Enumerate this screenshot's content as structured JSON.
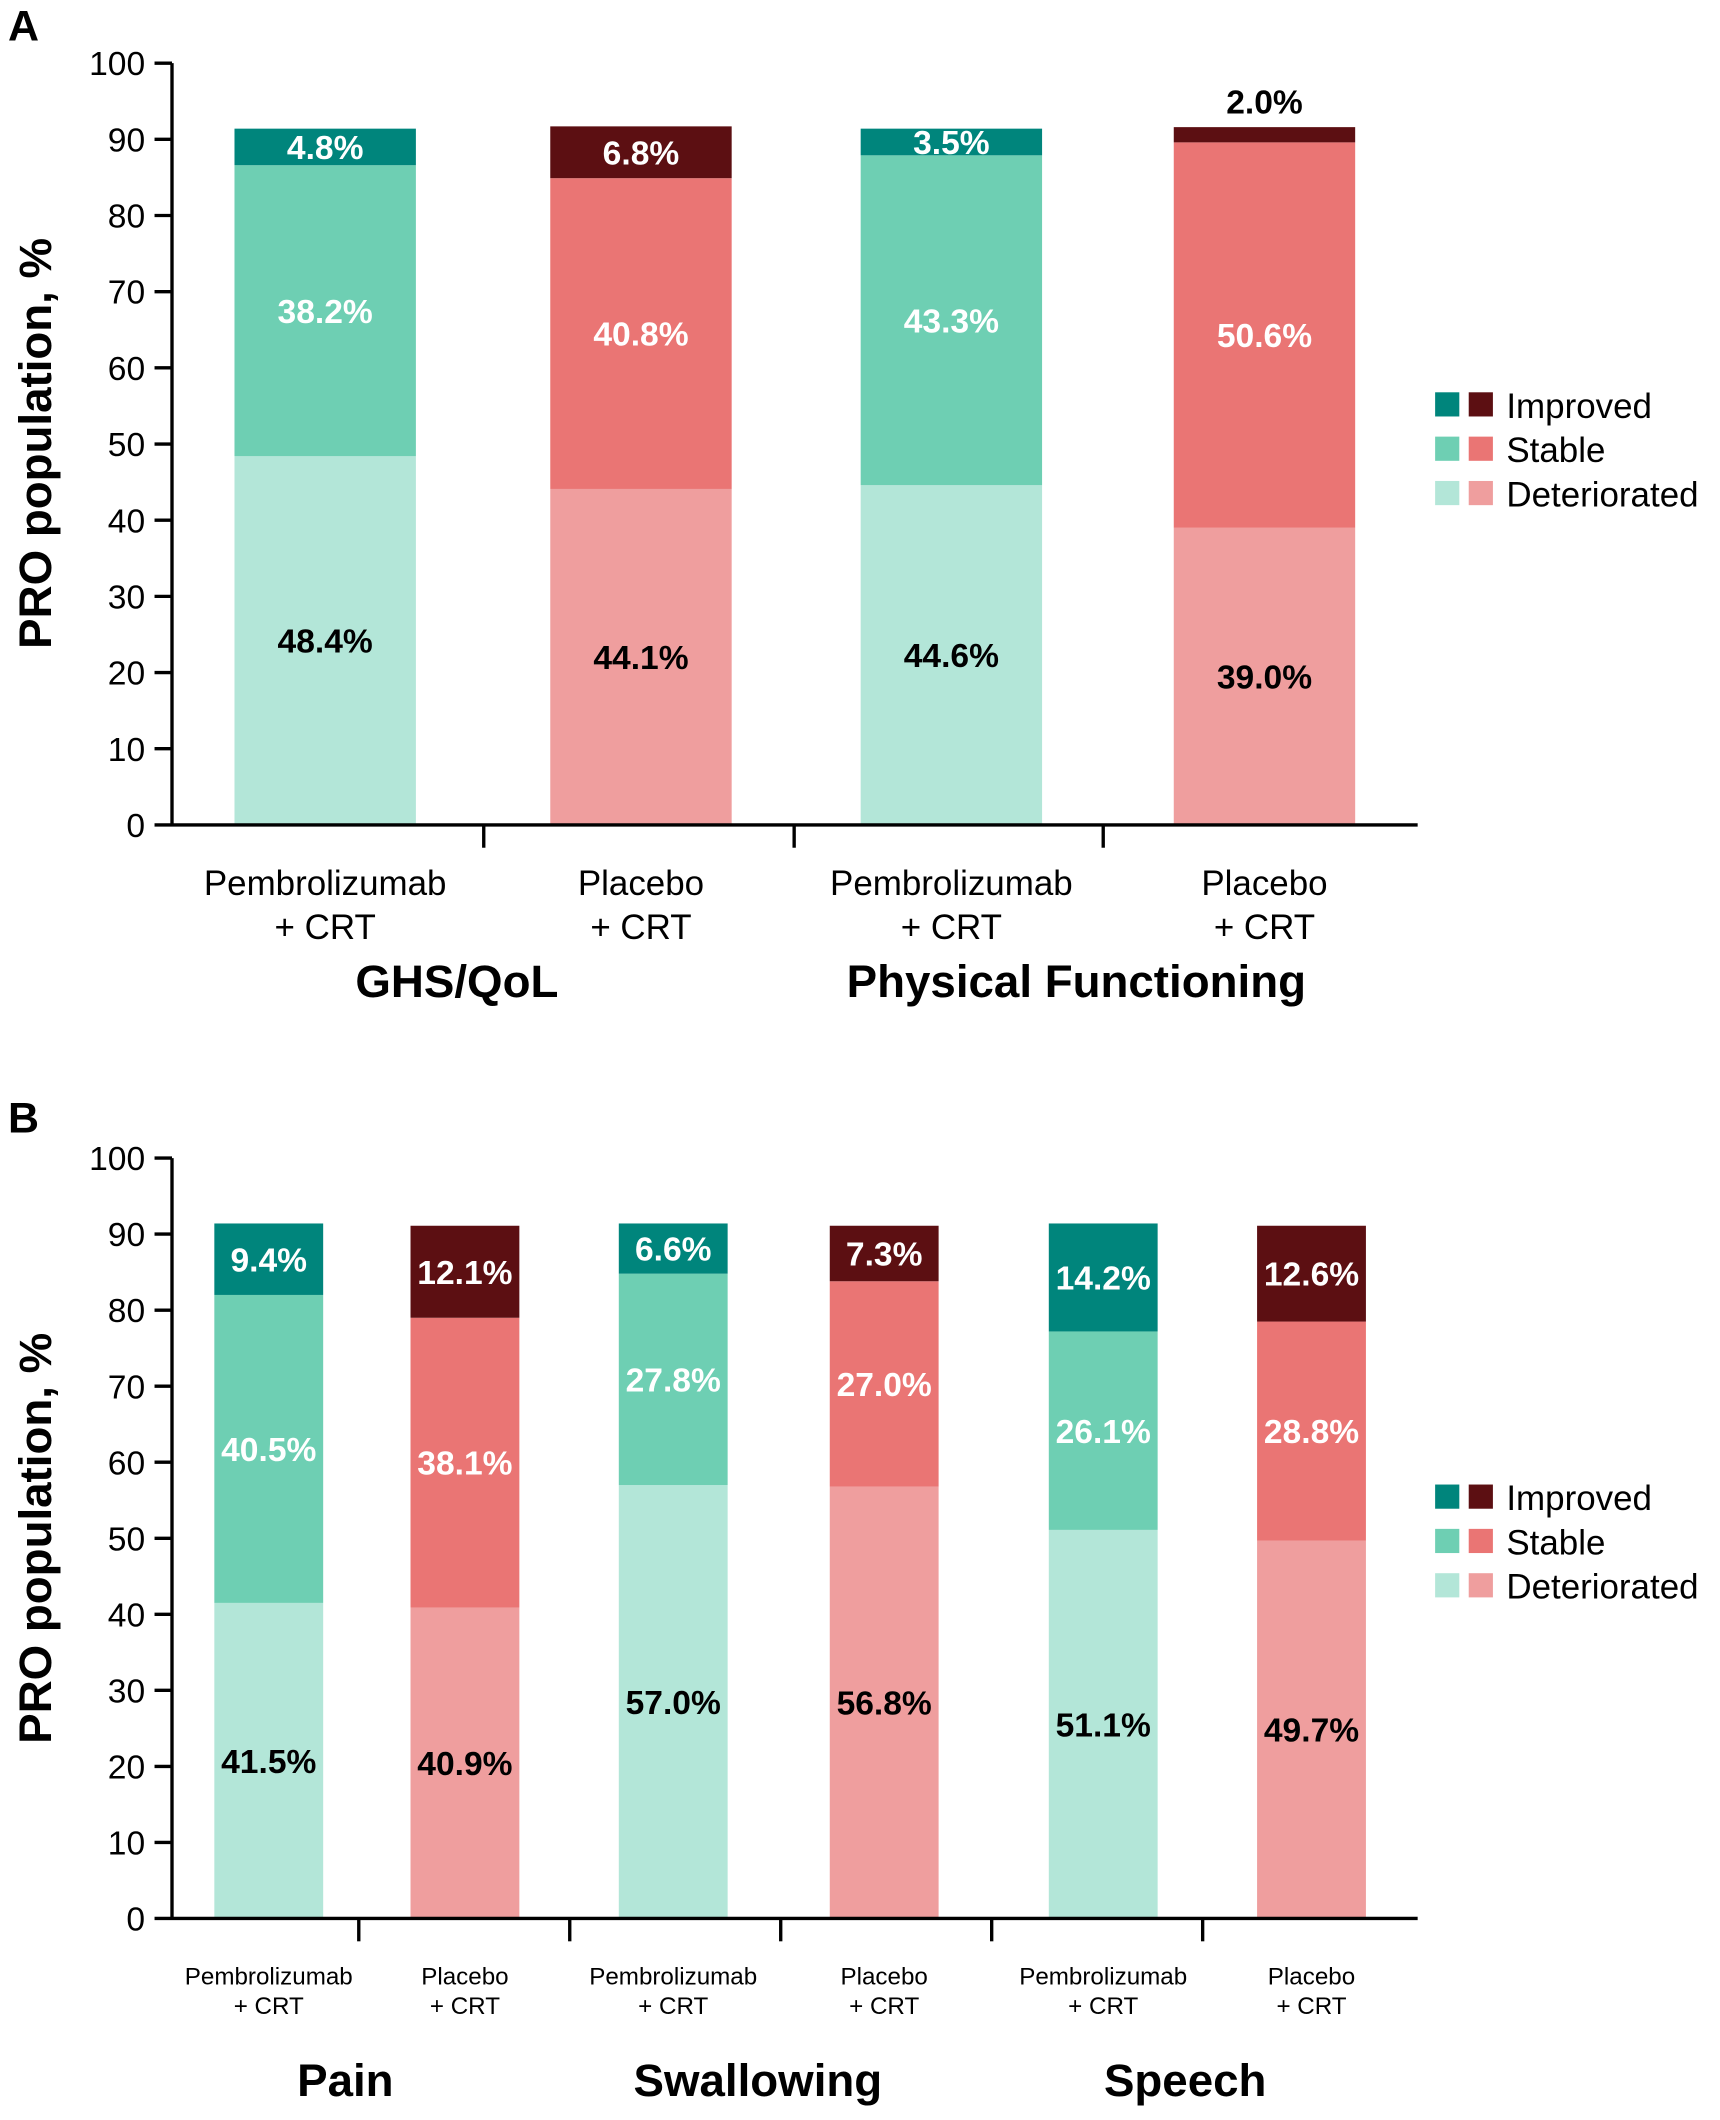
{
  "colors": {
    "pembro": {
      "Improved": "#00857c",
      "Stable": "#6ecfb3",
      "Deteriorated": "#b3e6d8"
    },
    "placebo": {
      "Improved": "#5c0f12",
      "Stable": "#ea7574",
      "Deteriorated": "#ef9e9e"
    }
  },
  "chart_data": [
    {
      "type": "bar",
      "stacked": true,
      "panel_label": "A",
      "ylabel": "PRO population, %",
      "ylim": [
        0,
        100
      ],
      "yticks": [
        "0",
        "10",
        "20",
        "30",
        "40",
        "50",
        "60",
        "70",
        "80",
        "90",
        "100"
      ],
      "legend": {
        "placement": "right",
        "entries": [
          "Improved",
          "Stable",
          "Deteriorated"
        ]
      },
      "groups": [
        "GHS/QoL",
        "Physical Functioning"
      ],
      "bars": [
        {
          "group": 0,
          "arm": "pembro",
          "label1": "Pembrolizumab",
          "label2": "+ CRT",
          "Deteriorated": 48.4,
          "Stable": 38.2,
          "Improved": 4.8,
          "texts": [
            "48.4%",
            "38.2%",
            "4.8%"
          ]
        },
        {
          "group": 0,
          "arm": "placebo",
          "label1": "Placebo",
          "label2": "+ CRT",
          "Deteriorated": 44.1,
          "Stable": 40.8,
          "Improved": 6.8,
          "texts": [
            "44.1%",
            "40.8%",
            "6.8%"
          ]
        },
        {
          "group": 1,
          "arm": "pembro",
          "label1": "Pembrolizumab",
          "label2": "+ CRT",
          "Deteriorated": 44.6,
          "Stable": 43.3,
          "Improved": 3.5,
          "texts": [
            "44.6%",
            "43.3%",
            "3.5%"
          ]
        },
        {
          "group": 1,
          "arm": "placebo",
          "label1": "Placebo",
          "label2": "+ CRT",
          "Deteriorated": 39.0,
          "Stable": 50.6,
          "Improved": 2.0,
          "texts": [
            "39.0%",
            "50.6%",
            "2.0%"
          ]
        }
      ]
    },
    {
      "type": "bar",
      "stacked": true,
      "panel_label": "B",
      "ylabel": "PRO population, %",
      "ylim": [
        0,
        100
      ],
      "yticks": [
        "0",
        "10",
        "20",
        "30",
        "40",
        "50",
        "60",
        "70",
        "80",
        "90",
        "100"
      ],
      "legend": {
        "placement": "right",
        "entries": [
          "Improved",
          "Stable",
          "Deteriorated"
        ]
      },
      "groups": [
        "Pain",
        "Swallowing",
        "Speech"
      ],
      "bars": [
        {
          "group": 0,
          "arm": "pembro",
          "label1": "Pembrolizumab",
          "label2": "+ CRT",
          "Deteriorated": 41.5,
          "Stable": 40.5,
          "Improved": 9.4,
          "texts": [
            "41.5%",
            "40.5%",
            "9.4%"
          ]
        },
        {
          "group": 0,
          "arm": "placebo",
          "label1": "Placebo",
          "label2": "+ CRT",
          "Deteriorated": 40.9,
          "Stable": 38.1,
          "Improved": 12.1,
          "texts": [
            "40.9%",
            "38.1%",
            "12.1%"
          ]
        },
        {
          "group": 1,
          "arm": "pembro",
          "label1": "Pembrolizumab",
          "label2": "+ CRT",
          "Deteriorated": 57.0,
          "Stable": 27.8,
          "Improved": 6.6,
          "texts": [
            "57.0%",
            "27.8%",
            "6.6%"
          ]
        },
        {
          "group": 1,
          "arm": "placebo",
          "label1": "Placebo",
          "label2": "+ CRT",
          "Deteriorated": 56.8,
          "Stable": 27.0,
          "Improved": 7.3,
          "texts": [
            "56.8%",
            "27.0%",
            "7.3%"
          ]
        },
        {
          "group": 2,
          "arm": "pembro",
          "label1": "Pembrolizumab",
          "label2": "+ CRT",
          "Deteriorated": 51.1,
          "Stable": 26.1,
          "Improved": 14.2,
          "texts": [
            "51.1%",
            "26.1%",
            "14.2%"
          ]
        },
        {
          "group": 2,
          "arm": "placebo",
          "label1": "Placebo",
          "label2": "+ CRT",
          "Deteriorated": 49.7,
          "Stable": 28.8,
          "Improved": 12.6,
          "texts": [
            "49.7%",
            "28.8%",
            "12.6%"
          ]
        }
      ]
    }
  ]
}
